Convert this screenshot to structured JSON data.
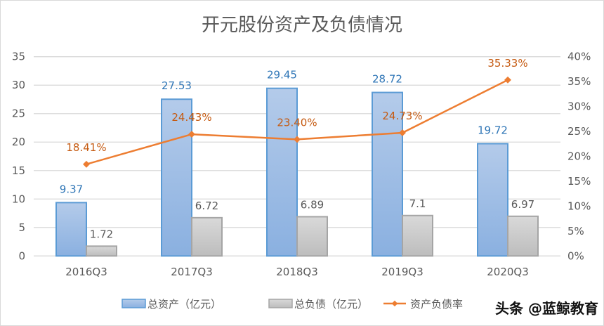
{
  "chart_data": {
    "type": "bar+line",
    "title": "开元股份资产及负债情况",
    "categories": [
      "2016Q3",
      "2017Q3",
      "2018Q3",
      "2019Q3",
      "2020Q3"
    ],
    "series": [
      {
        "name": "总资产（亿元）",
        "type": "bar",
        "axis": "left",
        "color": "#8EB4E3",
        "values": [
          9.37,
          27.53,
          29.45,
          28.72,
          19.72
        ],
        "labels": [
          "9.37",
          "27.53",
          "29.45",
          "28.72",
          "19.72"
        ],
        "label_color": "#2E75B6"
      },
      {
        "name": "总负债（亿元）",
        "type": "bar",
        "axis": "left",
        "color": "#BFBFBF",
        "values": [
          1.72,
          6.72,
          6.89,
          7.1,
          6.97
        ],
        "labels": [
          "1.72",
          "6.72",
          "6.89",
          "7.1",
          "6.97"
        ],
        "label_color": "#595959"
      },
      {
        "name": "资产负债率",
        "type": "line",
        "axis": "right",
        "color": "#ED7D31",
        "values": [
          18.41,
          24.43,
          23.4,
          24.73,
          35.33
        ],
        "labels": [
          "18.41%",
          "24.43%",
          "23.40%",
          "24.73%",
          "35.33%"
        ],
        "label_color": "#C55A11"
      }
    ],
    "y_left": {
      "ylim": [
        0,
        35
      ],
      "ticks": [
        "0",
        "5",
        "10",
        "15",
        "20",
        "25",
        "30",
        "35"
      ]
    },
    "y_right": {
      "ylim": [
        0,
        40
      ],
      "ticks": [
        "0%",
        "5%",
        "10%",
        "15%",
        "20%",
        "25%",
        "30%",
        "35%",
        "40%"
      ]
    },
    "grid": true,
    "legend": "bottom"
  },
  "watermark": "头条 @蓝鲸教育"
}
